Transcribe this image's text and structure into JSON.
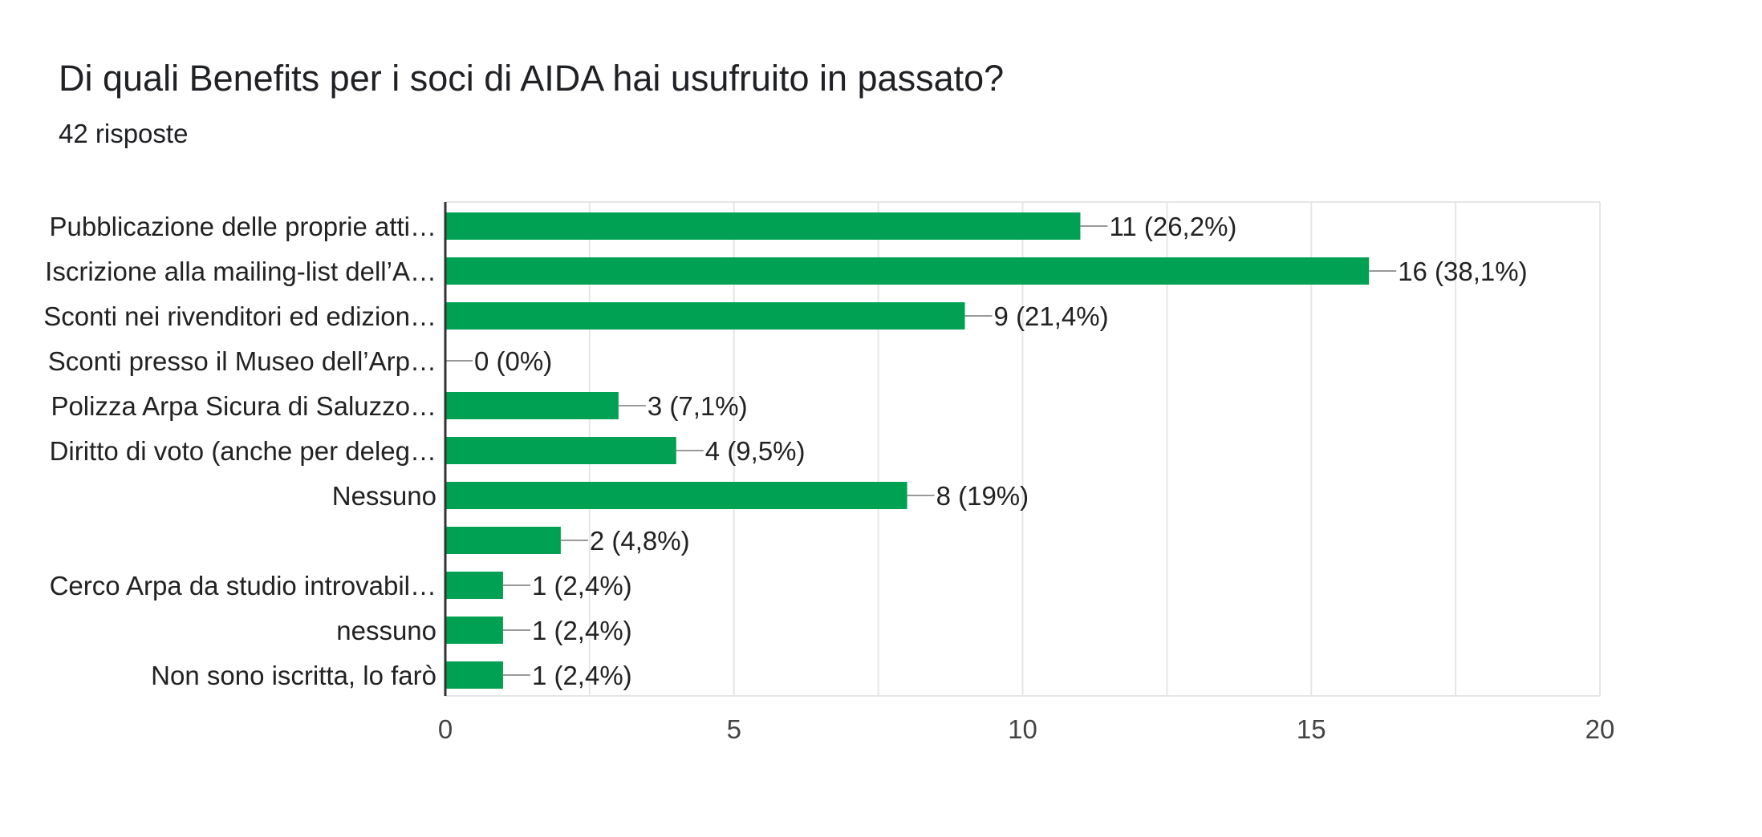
{
  "header": {
    "title": "Di quali Benefits per i soci di AIDA hai usufruito in passato?",
    "subtitle": "42 risposte"
  },
  "chart_data": {
    "type": "bar",
    "orientation": "horizontal",
    "categories": [
      "Pubblicazione delle proprie atti…",
      "Iscrizione alla mailing-list dell’A…",
      "Sconti nei rivenditori ed edizion…",
      "Sconti presso il Museo dell’Arp…",
      "Polizza Arpa Sicura di Saluzzo…",
      "Diritto di voto (anche per deleg…",
      "Nessuno",
      "",
      "Cerco Arpa da studio introvabil…",
      "nessuno",
      "Non sono iscritta, lo farò"
    ],
    "values": [
      11,
      16,
      9,
      0,
      3,
      4,
      8,
      2,
      1,
      1,
      1
    ],
    "data_labels": [
      "11 (26,2%)",
      "16 (38,1%)",
      "9 (21,4%)",
      "0 (0%)",
      "3 (7,1%)",
      "4 (9,5%)",
      "8 (19%)",
      "2 (4,8%)",
      "1 (2,4%)",
      "1 (2,4%)",
      "1 (2,4%)"
    ],
    "xlim": [
      0,
      20
    ],
    "x_ticks": [
      "0",
      "5",
      "10",
      "15",
      "20"
    ],
    "grid": true,
    "legend": "none",
    "bar_color": "#00a152",
    "leader_color": "#999999",
    "grid_color": "#e6e6e6",
    "axis_color": "#333333"
  }
}
